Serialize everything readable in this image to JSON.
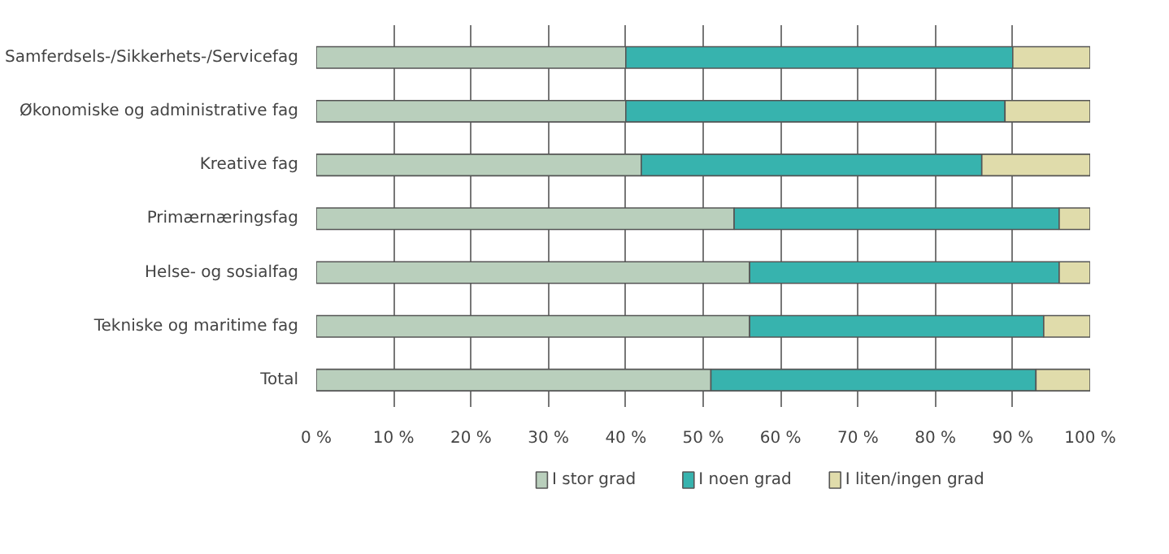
{
  "chart_data": {
    "type": "bar",
    "orientation": "horizontal",
    "stacked": true,
    "categories": [
      "Samferdsels-/Sikkerhets-/Servicefag",
      "Økonomiske og administrative fag",
      "Kreative fag",
      "Primærnæringsfag",
      "Helse- og sosialfag",
      "Tekniske og maritime fag",
      "Total"
    ],
    "series": [
      {
        "name": "I stor grad",
        "color": "#b9cfbc",
        "values": [
          40,
          40,
          42,
          54,
          56,
          56,
          51
        ]
      },
      {
        "name": "I noen grad",
        "color": "#37b3ae",
        "values": [
          50,
          49,
          44,
          42,
          40,
          38,
          42
        ]
      },
      {
        "name": "I liten/ingen grad",
        "color": "#e0dcab",
        "values": [
          10,
          11,
          14,
          4,
          4,
          6,
          7
        ]
      }
    ],
    "xlim": [
      0,
      100
    ],
    "xticks": [
      {
        "value": 0,
        "label": "0 %"
      },
      {
        "value": 10,
        "label": "10 %"
      },
      {
        "value": 20,
        "label": "20 %"
      },
      {
        "value": 30,
        "label": "30 %"
      },
      {
        "value": 40,
        "label": "40 %"
      },
      {
        "value": 50,
        "label": "50 %"
      },
      {
        "value": 60,
        "label": "60 %"
      },
      {
        "value": 70,
        "label": "70 %"
      },
      {
        "value": 80,
        "label": "80 %"
      },
      {
        "value": 90,
        "label": "90 %"
      },
      {
        "value": 100,
        "label": "100 %"
      }
    ],
    "grid": "x",
    "legend": "bottom"
  }
}
